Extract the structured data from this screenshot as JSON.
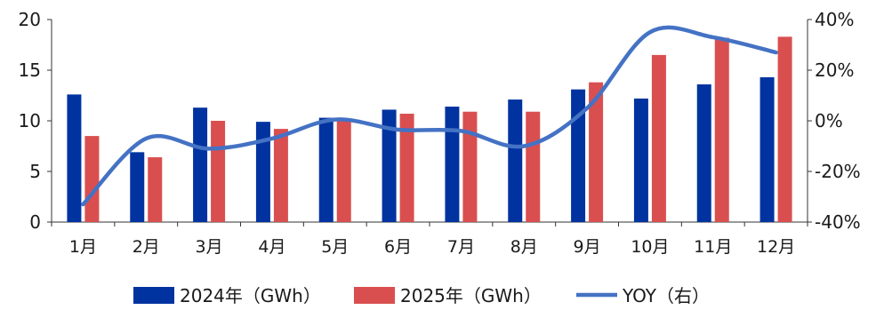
{
  "chart_data": {
    "type": "bar",
    "categories": [
      "1月",
      "2月",
      "3月",
      "4月",
      "5月",
      "6月",
      "7月",
      "8月",
      "9月",
      "10月",
      "11月",
      "12月"
    ],
    "series": [
      {
        "name": "2024年（GWh）",
        "type": "bar",
        "axis": "left",
        "color": "#0033a0",
        "values": [
          12.6,
          6.9,
          11.3,
          9.9,
          10.3,
          11.1,
          11.4,
          12.1,
          13.1,
          12.2,
          13.6,
          14.3
        ]
      },
      {
        "name": "2025年（GWh）",
        "type": "bar",
        "axis": "left",
        "color": "#d94f4f",
        "values": [
          8.5,
          6.4,
          10.0,
          9.2,
          10.2,
          10.7,
          10.9,
          10.9,
          13.8,
          16.5,
          18.2,
          18.3
        ]
      },
      {
        "name": "YOY（右）",
        "type": "line",
        "axis": "right",
        "color": "#4472c4",
        "values": [
          -33,
          -7,
          -11,
          -7,
          0.5,
          -3.5,
          -4,
          -10,
          5,
          35,
          33,
          27
        ]
      }
    ],
    "y_left": {
      "ticks": [
        "0",
        "5",
        "10",
        "15",
        "20"
      ],
      "min": 0,
      "max": 20
    },
    "y_right": {
      "ticks": [
        "-40%",
        "-20%",
        "0%",
        "20%",
        "40%"
      ],
      "min": -40,
      "max": 40
    },
    "grid": false,
    "legend": "bottom"
  }
}
